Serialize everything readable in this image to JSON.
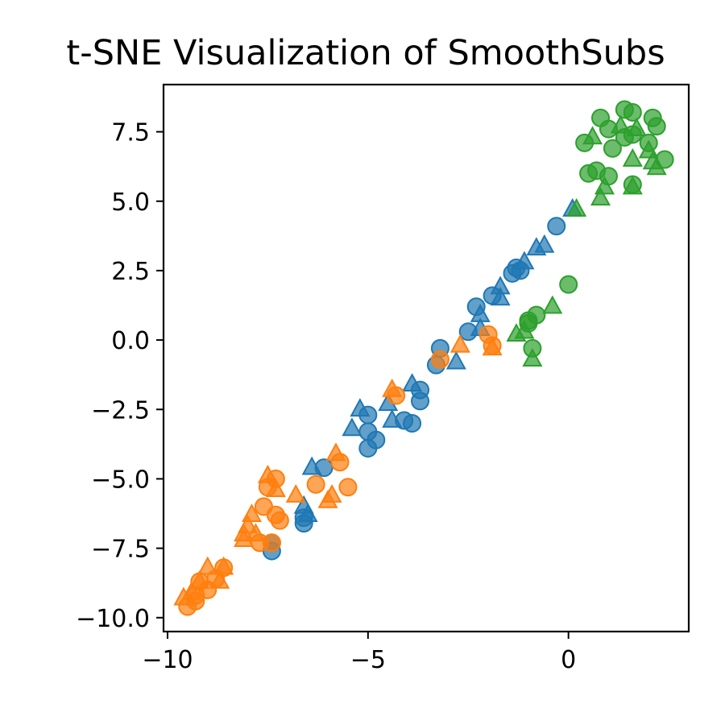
{
  "chart_data": {
    "type": "scatter",
    "title": "t-SNE Visualization of SmoothSubs",
    "xlabel": "",
    "ylabel": "",
    "xlim": [
      -10.1,
      3.0
    ],
    "ylim": [
      -10.5,
      9.2
    ],
    "x_ticks": [
      -10,
      -5,
      0
    ],
    "x_tick_labels": [
      "−10",
      "−5",
      "0"
    ],
    "y_ticks": [
      -10.0,
      -7.5,
      -5.0,
      -2.5,
      0.0,
      2.5,
      5.0,
      7.5
    ],
    "y_tick_labels": [
      "−10.0",
      "−7.5",
      "−5.0",
      "−2.5",
      "0.0",
      "2.5",
      "5.0",
      "7.5"
    ],
    "grid": false,
    "legend": "none",
    "series": [
      {
        "color": "#1f77b4",
        "marker": "circle",
        "points": [
          [
            -0.3,
            4.1
          ],
          [
            -1.3,
            2.6
          ],
          [
            -1.4,
            2.4
          ],
          [
            -1.2,
            2.5
          ],
          [
            -1.9,
            1.6
          ],
          [
            -2.3,
            1.2
          ],
          [
            -2.5,
            0.3
          ],
          [
            -3.2,
            -0.3
          ],
          [
            -3.3,
            -0.9
          ],
          [
            -3.7,
            -1.8
          ],
          [
            -3.7,
            -2.2
          ],
          [
            -4.1,
            -2.9
          ],
          [
            -3.9,
            -3.0
          ],
          [
            -5.0,
            -2.7
          ],
          [
            -5.0,
            -3.3
          ],
          [
            -5.0,
            -3.9
          ],
          [
            -4.8,
            -3.6
          ],
          [
            -6.1,
            -4.6
          ],
          [
            -6.6,
            -6.4
          ],
          [
            -6.6,
            -6.6
          ],
          [
            -7.4,
            -7.3
          ],
          [
            -7.4,
            -7.6
          ]
        ]
      },
      {
        "color": "#1f77b4",
        "marker": "triangle",
        "points": [
          [
            0.1,
            4.7
          ],
          [
            -0.6,
            3.4
          ],
          [
            -0.8,
            3.3
          ],
          [
            -1.1,
            2.8
          ],
          [
            -1.7,
            1.9
          ],
          [
            -1.7,
            1.5
          ],
          [
            -2.2,
            0.9
          ],
          [
            -2.2,
            0.4
          ],
          [
            -2.8,
            -0.8
          ],
          [
            -3.9,
            -1.6
          ],
          [
            -4.5,
            -2.3
          ],
          [
            -4.4,
            -2.9
          ],
          [
            -5.4,
            -3.2
          ],
          [
            -5.2,
            -2.5
          ],
          [
            -6.4,
            -4.6
          ],
          [
            -6.6,
            -6.0
          ],
          [
            -6.5,
            -6.3
          ]
        ]
      },
      {
        "color": "#ff7f0e",
        "marker": "circle",
        "points": [
          [
            -2.0,
            0.2
          ],
          [
            -1.9,
            -0.2
          ],
          [
            -3.2,
            -0.7
          ],
          [
            -4.3,
            -2.0
          ],
          [
            -5.7,
            -4.4
          ],
          [
            -5.5,
            -5.3
          ],
          [
            -6.3,
            -5.2
          ],
          [
            -7.3,
            -5.0
          ],
          [
            -7.5,
            -5.3
          ],
          [
            -7.6,
            -6.0
          ],
          [
            -7.3,
            -6.3
          ],
          [
            -7.2,
            -6.5
          ],
          [
            -7.7,
            -7.3
          ],
          [
            -7.4,
            -7.3
          ],
          [
            -9.2,
            -8.7
          ],
          [
            -8.8,
            -8.6
          ],
          [
            -8.6,
            -8.2
          ],
          [
            -9.0,
            -9.0
          ],
          [
            -9.3,
            -9.2
          ],
          [
            -9.5,
            -9.6
          ],
          [
            -9.3,
            -9.4
          ]
        ]
      },
      {
        "color": "#ff7f0e",
        "marker": "triangle",
        "points": [
          [
            -2.7,
            -0.2
          ],
          [
            -1.9,
            -0.3
          ],
          [
            -4.4,
            -1.8
          ],
          [
            -5.8,
            -4.1
          ],
          [
            -6.8,
            -5.6
          ],
          [
            -5.9,
            -5.6
          ],
          [
            -6.0,
            -5.8
          ],
          [
            -7.5,
            -4.9
          ],
          [
            -7.3,
            -5.4
          ],
          [
            -7.9,
            -6.3
          ],
          [
            -8.0,
            -6.7
          ],
          [
            -8.1,
            -7.0
          ],
          [
            -8.1,
            -7.2
          ],
          [
            -7.8,
            -7.0
          ],
          [
            -8.6,
            -8.2
          ],
          [
            -9.0,
            -8.2
          ],
          [
            -9.2,
            -8.7
          ],
          [
            -8.7,
            -8.7
          ],
          [
            -9.4,
            -9.1
          ],
          [
            -9.6,
            -9.3
          ]
        ]
      },
      {
        "color": "#2ca02c",
        "marker": "circle",
        "points": [
          [
            0.8,
            8.0
          ],
          [
            1.4,
            8.3
          ],
          [
            1.6,
            8.2
          ],
          [
            2.1,
            8.0
          ],
          [
            2.2,
            7.7
          ],
          [
            1.0,
            7.6
          ],
          [
            1.4,
            7.3
          ],
          [
            0.4,
            7.1
          ],
          [
            1.6,
            7.4
          ],
          [
            2.0,
            7.1
          ],
          [
            1.1,
            6.9
          ],
          [
            2.4,
            6.5
          ],
          [
            0.5,
            6.0
          ],
          [
            0.7,
            6.1
          ],
          [
            1.0,
            5.9
          ],
          [
            1.6,
            5.6
          ],
          [
            0.0,
            2.0
          ],
          [
            -1.0,
            0.7
          ],
          [
            -0.8,
            0.9
          ],
          [
            -1.0,
            0.6
          ],
          [
            -0.9,
            -0.3
          ]
        ]
      },
      {
        "color": "#2ca02c",
        "marker": "triangle",
        "points": [
          [
            0.2,
            4.7
          ],
          [
            0.6,
            7.3
          ],
          [
            1.3,
            7.7
          ],
          [
            1.7,
            7.6
          ],
          [
            2.0,
            6.8
          ],
          [
            2.1,
            6.4
          ],
          [
            1.6,
            6.5
          ],
          [
            0.9,
            5.5
          ],
          [
            0.8,
            5.1
          ],
          [
            1.6,
            5.5
          ],
          [
            2.2,
            6.2
          ],
          [
            -0.4,
            1.2
          ],
          [
            -1.1,
            0.3
          ],
          [
            -1.3,
            0.2
          ],
          [
            -0.9,
            -0.7
          ]
        ]
      }
    ]
  }
}
